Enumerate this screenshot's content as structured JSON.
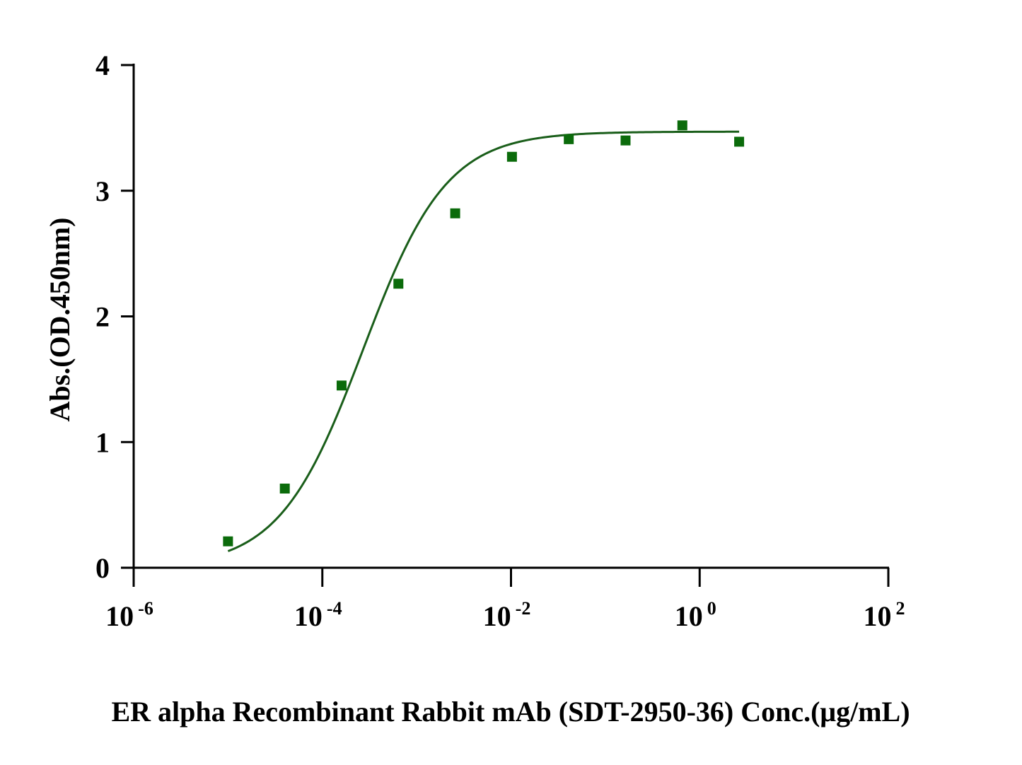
{
  "chart_data": {
    "type": "scatter",
    "title": "",
    "xlabel": "ER alpha Recombinant Rabbit mAb (SDT-2950-36) Conc.(μg/mL)",
    "ylabel": "Abs.(OD.450nm)",
    "x_scale": "log10",
    "xlim": [
      1e-06,
      100
    ],
    "ylim": [
      0,
      4
    ],
    "x_ticks": [
      {
        "base": "10",
        "exp": "-6"
      },
      {
        "base": "10",
        "exp": "-4"
      },
      {
        "base": "10",
        "exp": "-2"
      },
      {
        "base": "10",
        "exp": "0"
      },
      {
        "base": "10",
        "exp": "2"
      }
    ],
    "y_ticks": [
      "0",
      "1",
      "2",
      "3",
      "4"
    ],
    "grid": false,
    "legend": "none",
    "marker_color": "#0b6b0b",
    "curve_color": "#1a5e1a",
    "series": [
      {
        "x": [
          1e-05,
          4e-05,
          0.00016,
          0.00064,
          0.00256,
          0.01024,
          0.04096,
          0.16384,
          0.65536,
          2.62144
        ],
        "y": [
          0.21,
          0.63,
          1.45,
          2.26,
          2.82,
          3.27,
          3.41,
          3.4,
          3.52,
          3.39
        ],
        "fit": {
          "model": "4PL",
          "bottom": 0.0,
          "top": 3.47,
          "ec50": 0.00027,
          "hill": 0.98
        }
      }
    ]
  }
}
